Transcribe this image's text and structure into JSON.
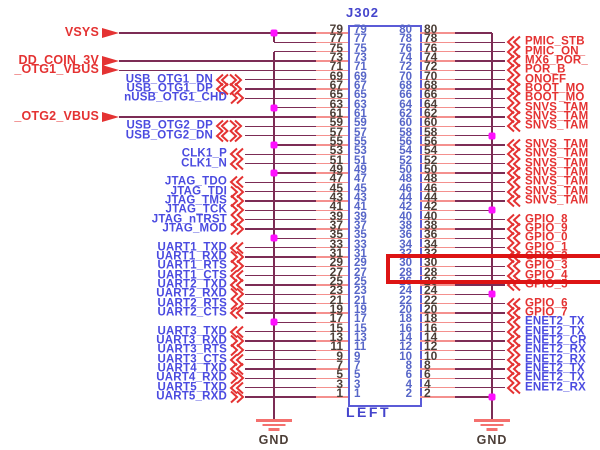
{
  "schematic": {
    "title": "J302",
    "orientation_label": "LEFT",
    "gnd_label": "GND",
    "highlighted_pin": 30,
    "colors": {
      "wire_light": "#f4908e",
      "wire_dark": "#7c2c55",
      "junction": "#ff10ff",
      "red_label": "#e43232",
      "blue_label": "#4b4be0",
      "pin_number_inside": "#5766c8",
      "pin_number_outside": "#4c3e37",
      "box_border": "#5b5bd7",
      "highlight": "#dd1414",
      "title_blue": "#4444cc"
    },
    "left_pin_numbers": [
      79,
      77,
      75,
      73,
      71,
      69,
      67,
      65,
      63,
      61,
      59,
      57,
      55,
      53,
      51,
      49,
      47,
      45,
      43,
      41,
      39,
      37,
      35,
      33,
      31,
      29,
      27,
      25,
      23,
      21,
      19,
      17,
      15,
      13,
      11,
      9,
      7,
      5,
      3,
      1
    ],
    "right_pin_numbers": [
      80,
      78,
      76,
      74,
      72,
      70,
      68,
      66,
      64,
      62,
      60,
      58,
      56,
      54,
      52,
      50,
      48,
      46,
      44,
      42,
      40,
      38,
      36,
      34,
      32,
      30,
      28,
      26,
      24,
      22,
      20,
      18,
      16,
      14,
      12,
      10,
      8,
      6,
      4,
      2
    ],
    "vsys_net_pins": [
      79,
      77
    ],
    "left_bus": {
      "net": "GND",
      "connects_pins": [
        75,
        63,
        55,
        49,
        35,
        17
      ]
    },
    "right_bus": {
      "net": "GND",
      "connects_pins": [
        80,
        58,
        42,
        24,
        2
      ]
    },
    "left_labels": [
      {
        "pin": 79,
        "text": "VSYS",
        "style": "power"
      },
      {
        "pin": 73,
        "text": "DD_COIN_3V",
        "style": "power"
      },
      {
        "pin": 71,
        "text": "_OTG1_VBUS",
        "style": "power"
      },
      {
        "pin": 69,
        "text": "USB_OTG1_DN",
        "style": "blue",
        "mark": "bi"
      },
      {
        "pin": 67,
        "text": "USB_OTG1_DP",
        "style": "blue",
        "mark": "bi"
      },
      {
        "pin": 65,
        "text": "nUSB_OTG1_CHD",
        "style": "blue",
        "mark": "in"
      },
      {
        "pin": 61,
        "text": "_OTG2_VBUS",
        "style": "power"
      },
      {
        "pin": 59,
        "text": "USB_OTG2_DP",
        "style": "blue",
        "mark": "bi"
      },
      {
        "pin": 57,
        "text": "USB_OTG2_DN",
        "style": "blue",
        "mark": "bi"
      },
      {
        "pin": 53,
        "text": "CLK1_P",
        "style": "blue",
        "mark": "out"
      },
      {
        "pin": 51,
        "text": "CLK1_N",
        "style": "blue",
        "mark": "out"
      },
      {
        "pin": 47,
        "text": "JTAG_TDO",
        "style": "blue",
        "mark": "out"
      },
      {
        "pin": 45,
        "text": "JTAG_TDI",
        "style": "blue",
        "mark": "in"
      },
      {
        "pin": 43,
        "text": "JTAG_TMS",
        "style": "blue",
        "mark": "in"
      },
      {
        "pin": 41,
        "text": "JTAG_TCK",
        "style": "blue",
        "mark": "in"
      },
      {
        "pin": 39,
        "text": "JTAG_nTRST",
        "style": "blue",
        "mark": "in"
      },
      {
        "pin": 37,
        "text": "JTAG_MOD",
        "style": "blue",
        "mark": "in"
      },
      {
        "pin": 33,
        "text": "UART1_TXD",
        "style": "blue",
        "mark": "out"
      },
      {
        "pin": 31,
        "text": "UART1_RXD",
        "style": "blue",
        "mark": "in"
      },
      {
        "pin": 29,
        "text": "UART1_RTS",
        "style": "blue",
        "mark": "in"
      },
      {
        "pin": 27,
        "text": "UART1_CTS",
        "style": "blue",
        "mark": "out"
      },
      {
        "pin": 25,
        "text": "UART2_TXD",
        "style": "blue",
        "mark": "out"
      },
      {
        "pin": 23,
        "text": "UART2_RXD",
        "style": "blue",
        "mark": "in"
      },
      {
        "pin": 21,
        "text": "UART2_RTS",
        "style": "blue",
        "mark": "in"
      },
      {
        "pin": 19,
        "text": "UART2_CTS",
        "style": "blue",
        "mark": "out"
      },
      {
        "pin": 15,
        "text": "UART3_TXD",
        "style": "blue",
        "mark": "out"
      },
      {
        "pin": 13,
        "text": "UART3_RXD",
        "style": "blue",
        "mark": "in"
      },
      {
        "pin": 11,
        "text": "UART3_RTS",
        "style": "blue",
        "mark": "in"
      },
      {
        "pin": 9,
        "text": "UART3_CTS",
        "style": "blue",
        "mark": "out"
      },
      {
        "pin": 7,
        "text": "UART4_TXD",
        "style": "blue",
        "mark": "out"
      },
      {
        "pin": 5,
        "text": "UART4_RXD",
        "style": "blue",
        "mark": "in"
      },
      {
        "pin": 3,
        "text": "UART5_TXD",
        "style": "blue",
        "mark": "out"
      },
      {
        "pin": 1,
        "text": "UART5_RXD",
        "style": "blue",
        "mark": "in"
      }
    ],
    "right_labels": [
      {
        "pin": 78,
        "text": "PMIC_STB",
        "style": "red",
        "mark": "out"
      },
      {
        "pin": 76,
        "text": "PMIC_ON_",
        "style": "red",
        "mark": "out"
      },
      {
        "pin": 74,
        "text": "MX6_POR_",
        "style": "red",
        "mark": "out"
      },
      {
        "pin": 72,
        "text": "POR_B",
        "style": "red",
        "mark": "out"
      },
      {
        "pin": 70,
        "text": "ONOFF",
        "style": "red",
        "mark": "out"
      },
      {
        "pin": 68,
        "text": "BOOT_MO",
        "style": "red",
        "mark": "out"
      },
      {
        "pin": 66,
        "text": "BOOT_MO",
        "style": "red",
        "mark": "out"
      },
      {
        "pin": 64,
        "text": "SNVS_TAM",
        "style": "red",
        "mark": "out"
      },
      {
        "pin": 62,
        "text": "SNVS_TAM",
        "style": "red",
        "mark": "out"
      },
      {
        "pin": 60,
        "text": "SNVS_TAM",
        "style": "red",
        "mark": "out"
      },
      {
        "pin": 56,
        "text": "SNVS_TAM",
        "style": "red",
        "mark": "out"
      },
      {
        "pin": 54,
        "text": "SNVS_TAM",
        "style": "red",
        "mark": "out"
      },
      {
        "pin": 52,
        "text": "SNVS_TAM",
        "style": "red",
        "mark": "out"
      },
      {
        "pin": 50,
        "text": "SNVS_TAM",
        "style": "red",
        "mark": "out"
      },
      {
        "pin": 48,
        "text": "SNVS_TAM",
        "style": "red",
        "mark": "out"
      },
      {
        "pin": 46,
        "text": "SNVS_TAM",
        "style": "red",
        "mark": "out"
      },
      {
        "pin": 44,
        "text": "SNVS_TAM",
        "style": "red",
        "mark": "out"
      },
      {
        "pin": 40,
        "text": "GPIO_8",
        "style": "red",
        "mark": "out"
      },
      {
        "pin": 38,
        "text": "GPIO_9",
        "style": "red",
        "mark": "out"
      },
      {
        "pin": 36,
        "text": "GPIO_0",
        "style": "red",
        "mark": "out"
      },
      {
        "pin": 34,
        "text": "GPIO_1",
        "style": "red",
        "mark": "out"
      },
      {
        "pin": 32,
        "text": "GPIO_2",
        "style": "red",
        "mark": "out"
      },
      {
        "pin": 30,
        "text": "GPIO_3",
        "style": "red",
        "mark": "out"
      },
      {
        "pin": 28,
        "text": "GPIO_4",
        "style": "red",
        "mark": "out"
      },
      {
        "pin": 26,
        "text": "GPIO_5",
        "style": "red",
        "mark": "out"
      },
      {
        "pin": 22,
        "text": "GPIO_6",
        "style": "red",
        "mark": "out"
      },
      {
        "pin": 20,
        "text": "GPIO_7",
        "style": "red",
        "mark": "out"
      },
      {
        "pin": 18,
        "text": "ENET2_TX",
        "style": "blue",
        "mark": "out"
      },
      {
        "pin": 16,
        "text": "ENET2_TX",
        "style": "blue",
        "mark": "out"
      },
      {
        "pin": 14,
        "text": "ENET2_CR",
        "style": "blue",
        "mark": "out"
      },
      {
        "pin": 12,
        "text": "ENET2_RX",
        "style": "blue",
        "mark": "out"
      },
      {
        "pin": 10,
        "text": "ENET2_RX",
        "style": "blue",
        "mark": "out"
      },
      {
        "pin": 8,
        "text": "ENET2_TX",
        "style": "blue",
        "mark": "out"
      },
      {
        "pin": 6,
        "text": "ENET2_TX",
        "style": "blue",
        "mark": "out"
      },
      {
        "pin": 4,
        "text": "ENET2_RX",
        "style": "blue",
        "mark": "out"
      }
    ]
  }
}
